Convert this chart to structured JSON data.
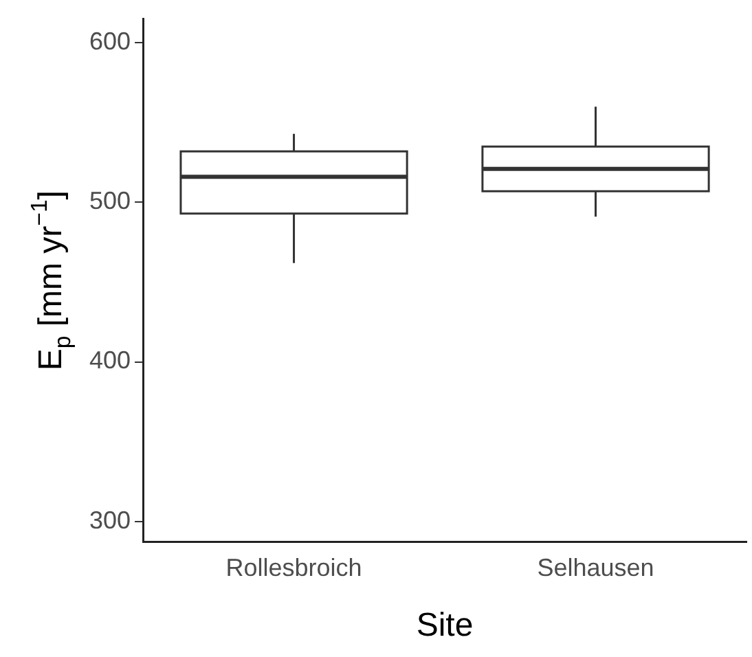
{
  "chart_data": {
    "type": "box",
    "xlabel": "Site",
    "ylabel": "E$_{p}$ [mm yr$^{−1}$]",
    "categories": [
      "Rollesbroich",
      "Selhausen"
    ],
    "boxes": [
      {
        "low": 462,
        "q1": 493,
        "median": 516,
        "q3": 532,
        "high": 543
      },
      {
        "low": 491,
        "q1": 507,
        "median": 521,
        "q3": 535,
        "high": 560
      }
    ],
    "color": "#333333",
    "ylim": [
      287,
      615
    ],
    "yticks": [
      300,
      400,
      500,
      600
    ],
    "grid": false,
    "legend": false
  }
}
